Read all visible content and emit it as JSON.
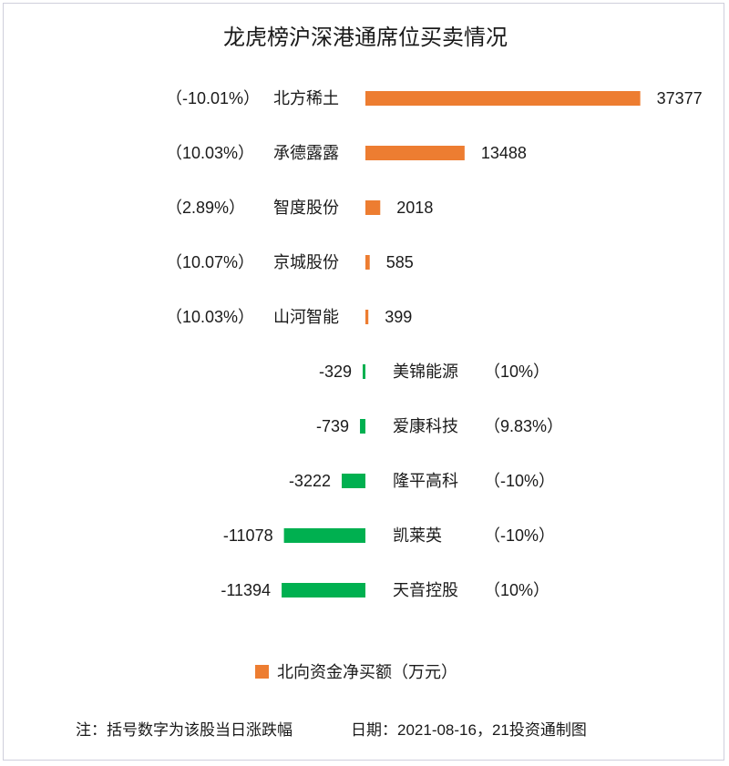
{
  "chart_data": {
    "type": "bar",
    "orientation": "horizontal",
    "title": "龙虎榜沪深港通席位买卖情况",
    "legend": {
      "label": "北向资金净买额（万元）",
      "position": "bottom",
      "color": "#ed7d31"
    },
    "colors": {
      "positive": "#ed7d31",
      "negative": "#00b050"
    },
    "categories": [
      "北方稀土",
      "承德露露",
      "智度股份",
      "京城股份",
      "山河智能",
      "美锦能源",
      "爱康科技",
      "隆平高科",
      "凯莱英",
      "天音控股"
    ],
    "values": [
      37377,
      13488,
      2018,
      585,
      399,
      -329,
      -739,
      -3222,
      -11078,
      -11394
    ],
    "change_labels": [
      "（-10.01%）",
      "（10.03%）",
      "（2.89%）",
      "（10.07%）",
      "（10.03%）",
      "（10%）",
      "（9.83%）",
      "（-10%）",
      "（-10%）",
      "（10%）"
    ],
    "xlabel": "",
    "ylabel": ""
  },
  "footer": {
    "note": "注：括号数字为该股当日涨跌幅",
    "date_source": "日期：2021-08-16，21投资通制图"
  }
}
